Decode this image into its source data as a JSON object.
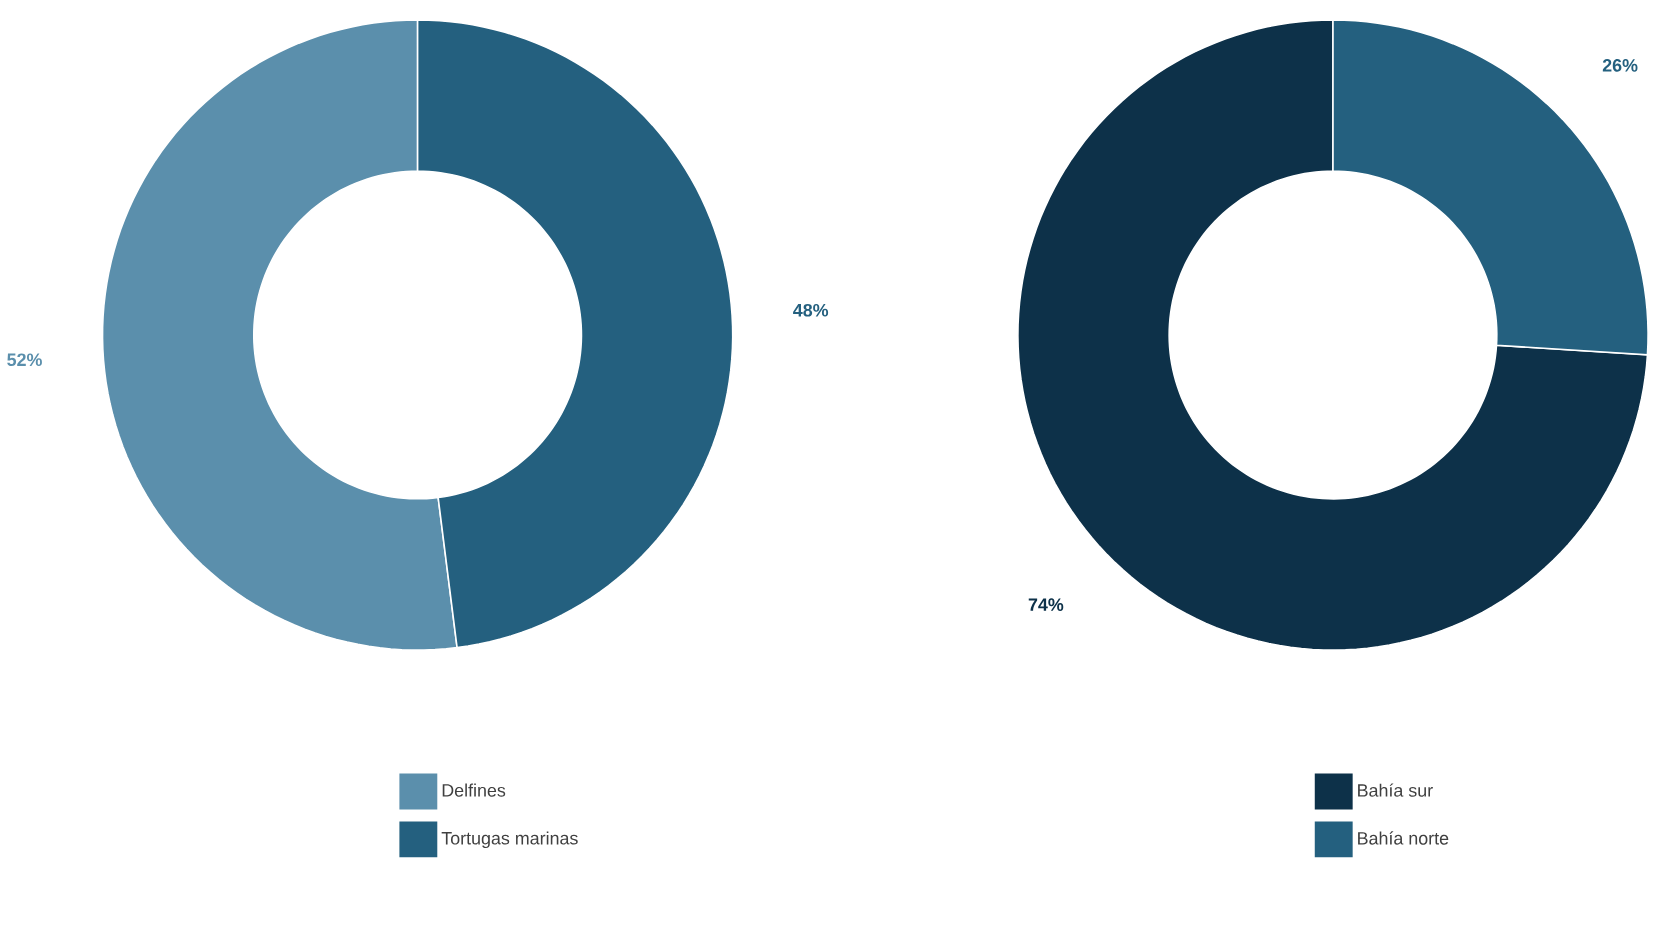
{
  "chart_data": [
    {
      "type": "donut",
      "categories": [
        "Delfines",
        "Tortugas marinas"
      ],
      "values": [
        52,
        48
      ],
      "colors": [
        "#5b8fac",
        "#24607f"
      ],
      "value_labels": [
        "52%",
        "48%"
      ],
      "legend": "bottom"
    },
    {
      "type": "donut",
      "categories": [
        "Bahía sur",
        "Bahía norte"
      ],
      "values": [
        74,
        26
      ],
      "colors": [
        "#0d3149",
        "#24607f"
      ],
      "value_labels": [
        "74%",
        "26%"
      ],
      "legend": "bottom"
    }
  ]
}
